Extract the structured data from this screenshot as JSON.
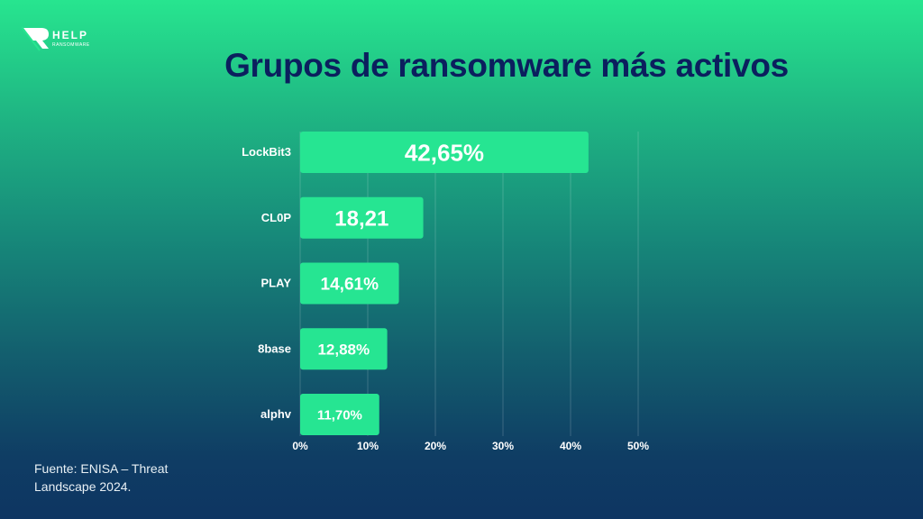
{
  "logo": {
    "text": "HELP",
    "subtext": "RANSOMWARE"
  },
  "title": "Grupos de ransomware más activos",
  "source": "Fuente: ENISA – Threat Landscape 2024.",
  "colors": {
    "bar": "#26e592",
    "title": "#0b1f5e",
    "label": "#ffffff"
  },
  "chart_data": {
    "type": "bar",
    "orientation": "horizontal",
    "title": "Grupos de ransomware más activos",
    "categories": [
      "LockBit3",
      "CL0P",
      "PLAY",
      "8base",
      "alphv"
    ],
    "values": [
      42.65,
      18.21,
      14.61,
      12.88,
      11.7
    ],
    "data_labels": [
      "42,65%",
      "18,21",
      "14,61%",
      "12,88%",
      "11,70%"
    ],
    "xlim": [
      0,
      50
    ],
    "xticks": [
      0,
      10,
      20,
      30,
      40,
      50
    ],
    "xtick_labels": [
      "0%",
      "10%",
      "20%",
      "30%",
      "40%",
      "50%"
    ],
    "grid": true
  }
}
